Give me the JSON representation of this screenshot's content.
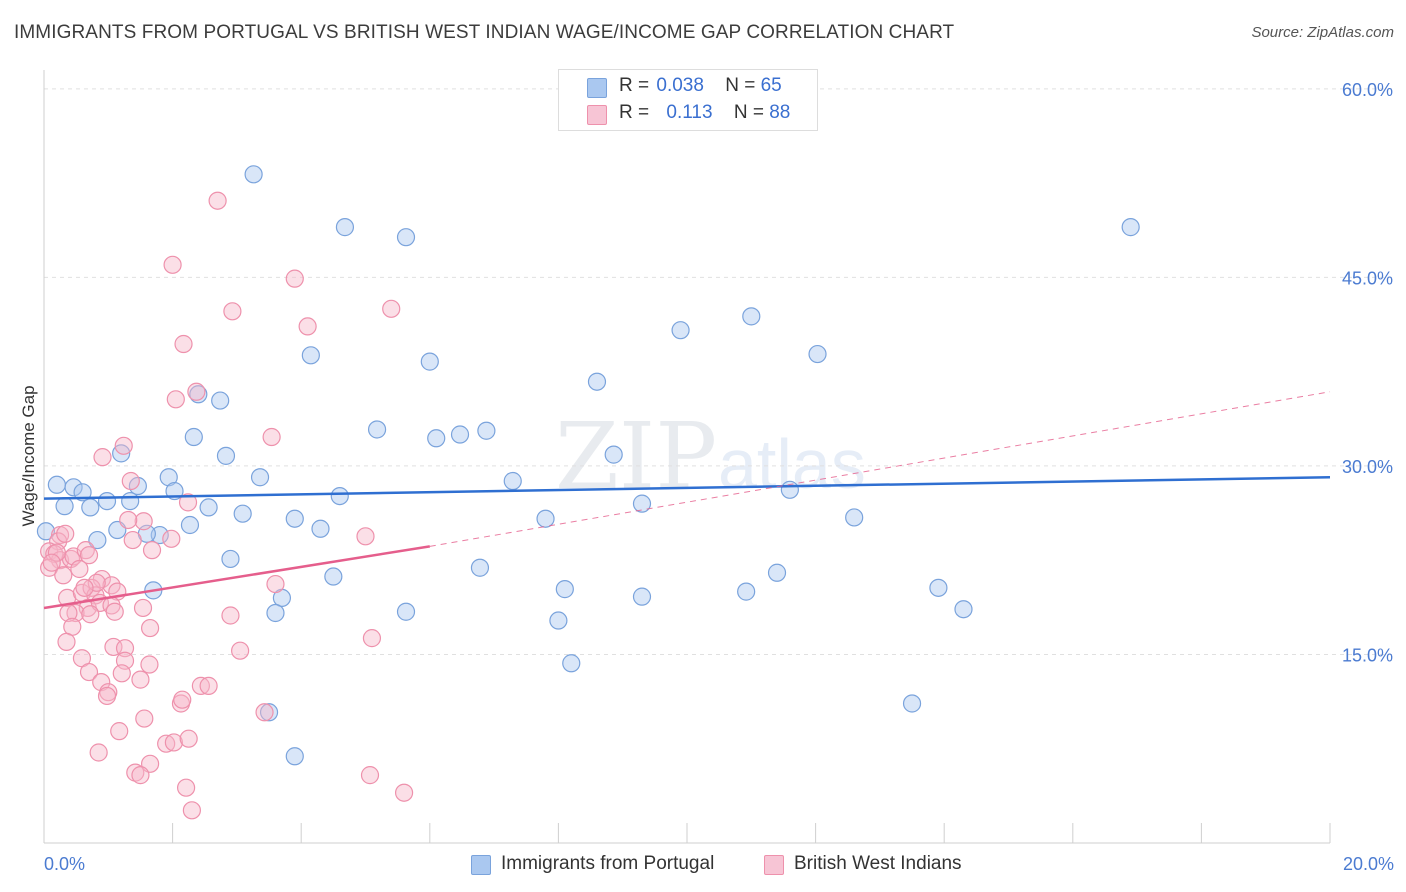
{
  "header": {
    "title": "IMMIGRANTS FROM PORTUGAL VS BRITISH WEST INDIAN WAGE/INCOME GAP CORRELATION CHART",
    "source": "Source: ZipAtlas.com"
  },
  "colors": {
    "blue_fill": "#aac8f0",
    "blue_stroke": "#7aa3dc",
    "blue_line": "#2f6fd1",
    "pink_fill": "#f7b8ca",
    "pink_stroke": "#ee91ac",
    "pink_line": "#e55e8c",
    "axis_label": "#4b7bd1",
    "grid": "#e0e0e0"
  },
  "legend": {
    "row1": {
      "r_label": "R =",
      "r_value": "0.038",
      "n_label": "N =",
      "n_value": "65"
    },
    "row2": {
      "r_label": "R =",
      "r_value": "0.113",
      "n_label": "N =",
      "n_value": "88"
    }
  },
  "bottom_legend": {
    "series1": "Immigrants from Portugal",
    "series2": "British West Indians"
  },
  "watermark": {
    "zip": "ZIP",
    "atlas": "atlas"
  },
  "chart_data": {
    "type": "scatter",
    "title": "IMMIGRANTS FROM PORTUGAL VS BRITISH WEST INDIAN WAGE/INCOME GAP CORRELATION CHART",
    "xlabel": "",
    "ylabel": "Wage/Income Gap",
    "xlim": [
      0,
      20
    ],
    "ylim": [
      0,
      61.5
    ],
    "x_tick_labels": {
      "min": "0.0%",
      "max": "20.0%"
    },
    "y_ticks": [
      15,
      30,
      45,
      60
    ],
    "y_tick_labels": [
      "15.0%",
      "30.0%",
      "45.0%",
      "60.0%"
    ],
    "series": [
      {
        "name": "Immigrants from Portugal",
        "color": "blue",
        "R": 0.038,
        "N": 65,
        "trend": {
          "x0": 0,
          "y0": 27.4,
          "x1": 20,
          "y1": 29.1,
          "dashed_to": null
        },
        "points": [
          [
            3.26,
            53.2
          ],
          [
            4.68,
            49.0
          ],
          [
            5.63,
            48.2
          ],
          [
            16.9,
            49.0
          ],
          [
            11.0,
            41.9
          ],
          [
            9.9,
            40.8
          ],
          [
            4.15,
            38.8
          ],
          [
            6.0,
            38.3
          ],
          [
            12.03,
            38.9
          ],
          [
            8.6,
            36.7
          ],
          [
            2.4,
            35.7
          ],
          [
            2.74,
            35.2
          ],
          [
            5.18,
            32.9
          ],
          [
            6.1,
            32.2
          ],
          [
            6.47,
            32.5
          ],
          [
            6.88,
            32.8
          ],
          [
            2.33,
            32.3
          ],
          [
            1.2,
            31.0
          ],
          [
            2.83,
            30.8
          ],
          [
            8.86,
            30.9
          ],
          [
            0.2,
            28.5
          ],
          [
            0.46,
            28.3
          ],
          [
            0.6,
            27.9
          ],
          [
            1.46,
            28.4
          ],
          [
            1.94,
            29.1
          ],
          [
            2.03,
            28.0
          ],
          [
            3.36,
            29.1
          ],
          [
            7.29,
            28.8
          ],
          [
            11.6,
            28.1
          ],
          [
            0.32,
            26.8
          ],
          [
            0.72,
            26.7
          ],
          [
            0.98,
            27.2
          ],
          [
            1.34,
            27.2
          ],
          [
            2.56,
            26.7
          ],
          [
            3.09,
            26.2
          ],
          [
            4.6,
            27.6
          ],
          [
            9.3,
            27.0
          ],
          [
            0.03,
            24.8
          ],
          [
            0.83,
            24.1
          ],
          [
            1.14,
            24.9
          ],
          [
            1.8,
            24.5
          ],
          [
            2.27,
            25.3
          ],
          [
            4.3,
            25.0
          ],
          [
            3.9,
            25.8
          ],
          [
            7.8,
            25.8
          ],
          [
            12.6,
            25.9
          ],
          [
            1.6,
            24.6
          ],
          [
            2.9,
            22.6
          ],
          [
            6.78,
            21.9
          ],
          [
            4.5,
            21.2
          ],
          [
            11.4,
            21.5
          ],
          [
            1.7,
            20.1
          ],
          [
            8.1,
            20.2
          ],
          [
            9.3,
            19.6
          ],
          [
            10.92,
            20.0
          ],
          [
            13.91,
            20.3
          ],
          [
            3.7,
            19.5
          ],
          [
            3.6,
            18.3
          ],
          [
            5.63,
            18.4
          ],
          [
            8.0,
            17.7
          ],
          [
            14.3,
            18.6
          ],
          [
            8.2,
            14.3
          ],
          [
            3.5,
            10.4
          ],
          [
            13.5,
            11.1
          ],
          [
            3.9,
            6.9
          ]
        ]
      },
      {
        "name": "British West Indians",
        "color": "pink",
        "R": 0.113,
        "N": 88,
        "trend": {
          "x0": 0,
          "y0": 18.7,
          "x1": 6.0,
          "y1": 23.6,
          "dashed_to": [
            20,
            35.9
          ]
        },
        "points": [
          [
            2.7,
            51.1
          ],
          [
            2.0,
            46.0
          ],
          [
            3.9,
            44.9
          ],
          [
            5.4,
            42.5
          ],
          [
            2.93,
            42.3
          ],
          [
            4.1,
            41.1
          ],
          [
            2.17,
            39.7
          ],
          [
            2.37,
            35.9
          ],
          [
            2.05,
            35.3
          ],
          [
            1.24,
            31.6
          ],
          [
            0.91,
            30.7
          ],
          [
            3.54,
            32.3
          ],
          [
            1.35,
            28.8
          ],
          [
            2.24,
            27.1
          ],
          [
            1.55,
            25.6
          ],
          [
            1.31,
            25.7
          ],
          [
            0.25,
            24.5
          ],
          [
            0.22,
            24.0
          ],
          [
            1.38,
            24.1
          ],
          [
            1.98,
            24.2
          ],
          [
            5.0,
            24.4
          ],
          [
            0.08,
            23.2
          ],
          [
            0.16,
            23.0
          ],
          [
            0.25,
            22.5
          ],
          [
            0.08,
            21.9
          ],
          [
            0.42,
            22.6
          ],
          [
            0.46,
            22.8
          ],
          [
            0.65,
            23.3
          ],
          [
            0.7,
            22.9
          ],
          [
            1.68,
            23.3
          ],
          [
            0.2,
            23.1
          ],
          [
            0.55,
            21.8
          ],
          [
            0.9,
            21.0
          ],
          [
            0.36,
            19.5
          ],
          [
            0.59,
            19.9
          ],
          [
            0.74,
            20.3
          ],
          [
            0.8,
            19.7
          ],
          [
            0.68,
            18.7
          ],
          [
            0.49,
            18.3
          ],
          [
            1.05,
            20.5
          ],
          [
            1.14,
            20.0
          ],
          [
            0.82,
            20.7
          ],
          [
            0.63,
            20.3
          ],
          [
            0.87,
            19.1
          ],
          [
            3.6,
            20.6
          ],
          [
            0.38,
            18.3
          ],
          [
            0.44,
            17.2
          ],
          [
            0.72,
            18.2
          ],
          [
            1.05,
            18.9
          ],
          [
            1.1,
            18.4
          ],
          [
            1.54,
            18.7
          ],
          [
            2.9,
            18.1
          ],
          [
            1.65,
            17.1
          ],
          [
            0.35,
            16.0
          ],
          [
            1.08,
            15.6
          ],
          [
            1.26,
            15.5
          ],
          [
            1.64,
            14.2
          ],
          [
            3.05,
            15.3
          ],
          [
            5.1,
            16.3
          ],
          [
            1.26,
            14.5
          ],
          [
            0.59,
            14.7
          ],
          [
            0.7,
            13.6
          ],
          [
            0.89,
            12.8
          ],
          [
            1.21,
            13.5
          ],
          [
            1.5,
            13.0
          ],
          [
            1.0,
            12.0
          ],
          [
            0.98,
            11.7
          ],
          [
            2.44,
            12.5
          ],
          [
            2.56,
            12.5
          ],
          [
            2.13,
            11.1
          ],
          [
            2.15,
            11.4
          ],
          [
            3.43,
            10.4
          ],
          [
            1.56,
            9.9
          ],
          [
            1.17,
            8.9
          ],
          [
            1.9,
            7.9
          ],
          [
            2.02,
            8.0
          ],
          [
            2.25,
            8.3
          ],
          [
            0.85,
            7.2
          ],
          [
            1.65,
            6.3
          ],
          [
            1.42,
            5.6
          ],
          [
            1.5,
            5.4
          ],
          [
            5.07,
            5.4
          ],
          [
            2.21,
            4.4
          ],
          [
            5.6,
            4.0
          ],
          [
            2.3,
            2.6
          ],
          [
            0.33,
            24.6
          ],
          [
            0.12,
            22.3
          ],
          [
            0.3,
            21.3
          ]
        ]
      }
    ]
  }
}
